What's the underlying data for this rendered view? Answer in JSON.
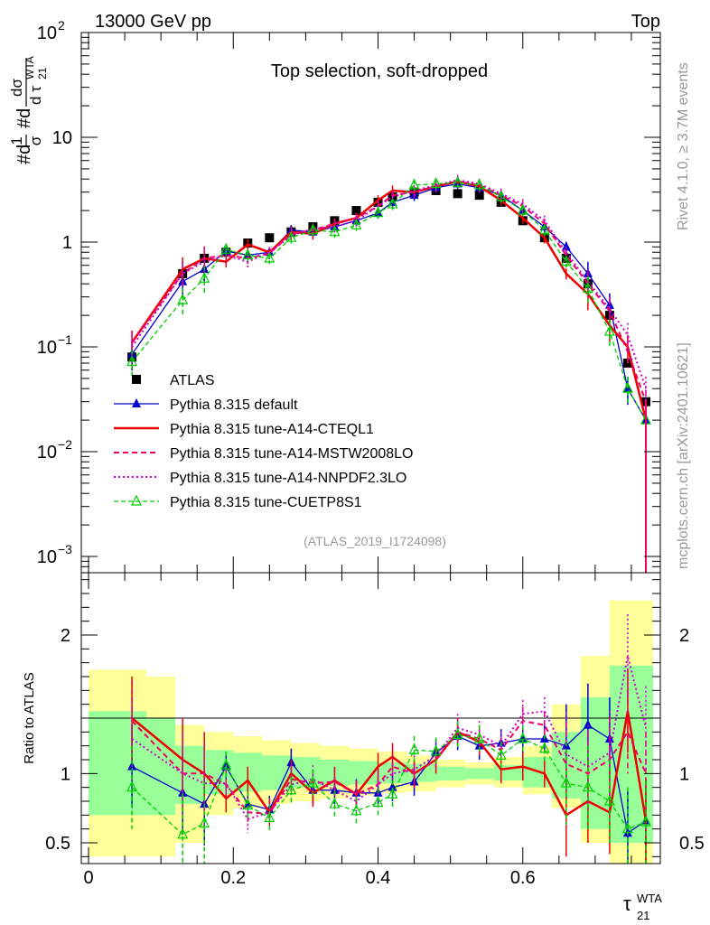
{
  "header": {
    "energy": "13000 GeV pp",
    "process": "Top"
  },
  "side_text": {
    "version": "Rivet 4.1.0, ≥ 3.7M events",
    "source": "mcplots.cern.ch [arXiv:2401.10621]"
  },
  "chart_data": [
    {
      "type": "line",
      "title": "Top selection, soft-dropped",
      "analysis_id": "(ATLAS_2019_I1724098)",
      "ylabel_parts": {
        "left": "#d",
        "frac_num": "1",
        "frac_den": "σ",
        "mid": "#d",
        "frac2_num": "dσ",
        "frac2_den": "d τ",
        "sub": "21",
        "sup": "WTA"
      },
      "xlabel": "τ",
      "xlabel_sub": "21",
      "xlabel_sup": "WTA",
      "yscale": "log",
      "xlim": [
        -0.01,
        0.79
      ],
      "ylim": [
        0.0007,
        100
      ],
      "yticks": [
        {
          "value": 0.001,
          "base": "10",
          "exp": "−3"
        },
        {
          "value": 0.01,
          "base": "10",
          "exp": "−2"
        },
        {
          "value": 0.1,
          "base": "10",
          "exp": "−1"
        },
        {
          "value": 1,
          "base": "1",
          "exp": ""
        },
        {
          "value": 10,
          "base": "10",
          "exp": ""
        },
        {
          "value": 100,
          "base": "10",
          "exp": "2"
        }
      ],
      "x": [
        0.06,
        0.13,
        0.16,
        0.19,
        0.22,
        0.25,
        0.28,
        0.31,
        0.34,
        0.37,
        0.4,
        0.42,
        0.45,
        0.48,
        0.51,
        0.54,
        0.57,
        0.6,
        0.63,
        0.66,
        0.69,
        0.72,
        0.745,
        0.77
      ],
      "series": [
        {
          "name": "ATLAS",
          "style": "data",
          "color": "#000000",
          "values": [
            0.08,
            0.5,
            0.7,
            0.8,
            0.98,
            1.1,
            1.25,
            1.4,
            1.6,
            2.0,
            2.4,
            2.7,
            3.0,
            3.1,
            2.9,
            2.8,
            2.4,
            1.6,
            1.1,
            0.7,
            0.4,
            0.2,
            0.07,
            0.03
          ]
        },
        {
          "name": "Pythia 8.315 default",
          "style": "blue",
          "color": "#0000cc",
          "values": [
            0.085,
            0.42,
            0.55,
            0.82,
            0.75,
            0.8,
            1.3,
            1.25,
            1.4,
            1.6,
            1.9,
            2.4,
            2.8,
            3.3,
            3.6,
            3.3,
            2.8,
            2.0,
            1.4,
            0.9,
            0.5,
            0.25,
            0.04,
            0.02
          ]
        },
        {
          "name": "Pythia 8.315 tune-A14-CTEQL1",
          "style": "red",
          "color": "#ee0000",
          "values": [
            0.11,
            0.55,
            0.7,
            0.65,
            0.95,
            0.8,
            1.25,
            1.2,
            1.5,
            1.7,
            2.5,
            3.1,
            3.0,
            3.4,
            3.8,
            3.4,
            2.5,
            1.7,
            1.1,
            0.5,
            0.32,
            0.16,
            0.1,
            0.02
          ]
        },
        {
          "name": "Pythia 8.315 tune-A14-MSTW2008LO",
          "style": "magenta-dashed",
          "color": "#ee0066",
          "values": [
            0.11,
            0.5,
            0.7,
            0.75,
            0.7,
            0.78,
            1.2,
            1.3,
            1.5,
            1.7,
            2.2,
            2.8,
            3.0,
            3.4,
            3.8,
            3.5,
            2.8,
            2.2,
            1.5,
            0.75,
            0.4,
            0.22,
            0.09,
            0.03
          ]
        },
        {
          "name": "Pythia 8.315 tune-A14-NNPDF2.3LO",
          "style": "magenta-dotted",
          "color": "#cc00cc",
          "values": [
            0.1,
            0.5,
            0.65,
            0.75,
            0.65,
            0.8,
            1.15,
            1.35,
            1.4,
            1.6,
            2.2,
            2.7,
            3.1,
            3.5,
            3.9,
            3.6,
            2.9,
            2.3,
            1.6,
            0.8,
            0.42,
            0.23,
            0.13,
            0.04
          ]
        },
        {
          "name": "Pythia 8.315 tune-CUETP8S1",
          "style": "green",
          "color": "#00cc00",
          "values": [
            0.072,
            0.28,
            0.45,
            0.85,
            0.75,
            0.7,
            1.1,
            1.3,
            1.25,
            1.45,
            1.9,
            2.3,
            3.5,
            3.6,
            3.7,
            3.5,
            2.7,
            2.0,
            1.3,
            0.65,
            0.36,
            0.14,
            0.04,
            0.02
          ]
        }
      ]
    },
    {
      "type": "line",
      "title": "",
      "ylabel": "Ratio to ATLAS",
      "ylim": [
        0.35,
        2.45
      ],
      "yticks": [
        0.5,
        1,
        2
      ],
      "ytick_labels": [
        "0.5",
        "1",
        "2"
      ],
      "xticks": [
        0,
        0.2,
        0.4,
        0.6
      ],
      "xtick_labels": [
        "0",
        "0.2",
        "0.4",
        "0.6"
      ],
      "uncertainty_bands": {
        "edges": [
          0.0,
          0.04,
          0.08,
          0.12,
          0.16,
          0.2,
          0.24,
          0.28,
          0.32,
          0.36,
          0.4,
          0.44,
          0.48,
          0.52,
          0.56,
          0.6,
          0.64,
          0.68,
          0.72,
          0.76,
          0.78
        ],
        "outer_color": "#ffff99",
        "inner_color": "#99ff99",
        "outer_lo": [
          0.4,
          0.4,
          0.4,
          0.5,
          0.7,
          0.75,
          0.78,
          0.8,
          0.82,
          0.84,
          0.86,
          0.87,
          0.9,
          0.92,
          0.9,
          0.85,
          0.75,
          0.5,
          0.3,
          0.3
        ],
        "outer_hi": [
          1.75,
          1.75,
          1.7,
          1.35,
          1.3,
          1.27,
          1.24,
          1.22,
          1.2,
          1.18,
          1.16,
          1.13,
          1.1,
          1.08,
          1.12,
          1.2,
          1.5,
          1.85,
          2.25,
          2.25
        ],
        "inner_lo": [
          0.7,
          0.7,
          0.7,
          0.78,
          0.85,
          0.87,
          0.88,
          0.9,
          0.91,
          0.92,
          0.93,
          0.94,
          0.95,
          0.96,
          0.95,
          0.9,
          0.82,
          0.6,
          0.5,
          0.5
        ],
        "inner_hi": [
          1.45,
          1.45,
          1.4,
          1.2,
          1.17,
          1.15,
          1.13,
          1.12,
          1.1,
          1.09,
          1.08,
          1.07,
          1.05,
          1.04,
          1.06,
          1.12,
          1.3,
          1.55,
          1.78,
          1.78
        ]
      },
      "series": [
        {
          "name": "Pythia 8.315 default",
          "style": "blue",
          "color": "#0000cc",
          "values": [
            1.05,
            0.86,
            0.78,
            1.05,
            0.78,
            0.74,
            1.08,
            0.88,
            0.88,
            0.86,
            0.86,
            0.9,
            0.94,
            1.15,
            1.27,
            1.2,
            1.22,
            1.25,
            1.25,
            1.2,
            1.35,
            1.25,
            0.57,
            0.66
          ]
        },
        {
          "name": "Pythia 8.315 tune-A14-CTEQL1",
          "style": "red",
          "color": "#ee0000",
          "values": [
            1.4,
            1.1,
            1.0,
            0.82,
            0.95,
            0.72,
            1.0,
            0.86,
            0.95,
            0.85,
            1.05,
            1.12,
            1.0,
            1.1,
            1.3,
            1.23,
            1.03,
            1.05,
            1.0,
            0.7,
            0.8,
            0.72,
            1.45,
            0.66
          ]
        },
        {
          "name": "Pythia 8.315 tune-A14-MSTW2008LO",
          "style": "magenta-dashed",
          "color": "#ee0066",
          "values": [
            1.38,
            1.0,
            1.0,
            0.92,
            0.72,
            0.71,
            0.96,
            0.93,
            0.94,
            0.85,
            0.92,
            1.05,
            1.0,
            1.1,
            1.3,
            1.25,
            1.17,
            1.38,
            1.35,
            1.07,
            1.0,
            1.1,
            1.3,
            1.0
          ]
        },
        {
          "name": "Pythia 8.315 tune-A14-NNPDF2.3LO",
          "style": "magenta-dotted",
          "color": "#cc00cc",
          "values": [
            1.25,
            1.0,
            0.93,
            0.93,
            0.67,
            0.72,
            0.92,
            0.96,
            0.88,
            0.8,
            0.92,
            1.0,
            1.03,
            1.13,
            1.33,
            1.28,
            1.2,
            1.43,
            1.45,
            1.14,
            1.05,
            1.15,
            1.85,
            1.33
          ]
        },
        {
          "name": "Pythia 8.315 tune-CUETP8S1",
          "style": "green",
          "color": "#00cc00",
          "values": [
            0.9,
            0.56,
            0.64,
            1.06,
            0.77,
            0.68,
            0.88,
            0.93,
            0.78,
            0.73,
            0.79,
            0.85,
            1.17,
            1.16,
            1.28,
            1.25,
            1.13,
            1.25,
            1.18,
            0.93,
            0.9,
            0.8,
            0.6,
            0.65
          ]
        }
      ]
    }
  ]
}
